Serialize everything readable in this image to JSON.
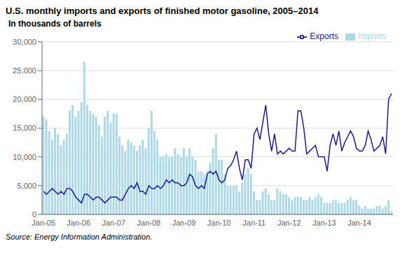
{
  "chart_data": {
    "type": "bar",
    "title": "U.S. monthly imports and exports of finished motor gasoline, 2005–2014",
    "ylabel": "In thousands of barrels",
    "annotations": [
      "Source: Energy Information Administration."
    ],
    "categories": [
      "Jan-05",
      null,
      null,
      null,
      null,
      null,
      null,
      null,
      null,
      null,
      null,
      null,
      "Jan-06",
      null,
      null,
      null,
      null,
      null,
      null,
      null,
      null,
      null,
      null,
      null,
      "Jan-07",
      null,
      null,
      null,
      null,
      null,
      null,
      null,
      null,
      null,
      null,
      null,
      "Jan-08",
      null,
      null,
      null,
      null,
      null,
      null,
      null,
      null,
      null,
      null,
      null,
      "Jan-09",
      null,
      null,
      null,
      null,
      null,
      null,
      null,
      null,
      null,
      null,
      null,
      "Jan-10",
      null,
      null,
      null,
      null,
      null,
      null,
      null,
      null,
      null,
      null,
      null,
      "Jan-11",
      null,
      null,
      null,
      null,
      null,
      null,
      null,
      null,
      null,
      null,
      null,
      "Jan-12",
      null,
      null,
      null,
      null,
      null,
      null,
      null,
      null,
      null,
      null,
      null,
      "Jan-13",
      null,
      null,
      null,
      null,
      null,
      null,
      null,
      null,
      null,
      null,
      null,
      "Jan-14",
      null,
      null,
      null,
      null,
      null,
      null,
      null,
      null,
      null,
      null,
      null
    ],
    "series": [
      {
        "name": "Imports",
        "type": "bar",
        "color": "#add8e6",
        "values": [
          17000,
          16500,
          14500,
          13000,
          15000,
          14000,
          12000,
          13000,
          14000,
          18000,
          19000,
          17000,
          18000,
          19500,
          26500,
          19000,
          18000,
          17500,
          17000,
          15500,
          13500,
          17000,
          18000,
          16000,
          17500,
          17500,
          13500,
          12000,
          11000,
          13000,
          12500,
          12000,
          11000,
          12000,
          13000,
          11500,
          15000,
          18000,
          14500,
          13000,
          10000,
          10000,
          10500,
          10000,
          10000,
          11500,
          10500,
          10000,
          11500,
          10000,
          11500,
          10000,
          9500,
          7500,
          7500,
          7000,
          7500,
          9000,
          11500,
          14000,
          9500,
          9500,
          7000,
          5000,
          5000,
          5000,
          5000,
          4000,
          5500,
          7000,
          8000,
          7000,
          4000,
          2500,
          2500,
          4000,
          4500,
          3500,
          2500,
          2500,
          4500,
          4000,
          3500,
          3500,
          3000,
          2500,
          3000,
          3000,
          3000,
          2500,
          2500,
          3000,
          2500,
          3000,
          3500,
          3000,
          2000,
          2000,
          2000,
          2500,
          2500,
          2000,
          2000,
          2000,
          2500,
          3000,
          2500,
          2500,
          1500,
          1000,
          1500,
          1000,
          1000,
          1000,
          1500,
          1500,
          1000,
          1500,
          2500,
          500
        ]
      },
      {
        "name": "Exports",
        "type": "line",
        "color": "#1a1a8c",
        "values": [
          4000,
          3500,
          4000,
          4500,
          4000,
          3500,
          4000,
          3500,
          4500,
          4500,
          4000,
          3000,
          2500,
          2000,
          3500,
          3500,
          3000,
          2500,
          3000,
          3000,
          2500,
          2000,
          2500,
          3000,
          3000,
          3000,
          2500,
          2500,
          3500,
          4500,
          5000,
          4500,
          5500,
          4000,
          4000,
          3500,
          5000,
          4500,
          4500,
          5000,
          4500,
          5000,
          6000,
          5500,
          6000,
          5500,
          5500,
          5000,
          5000,
          5500,
          7000,
          6500,
          5000,
          4500,
          5000,
          4500,
          7000,
          7500,
          7000,
          7500,
          6000,
          5500,
          6000,
          8000,
          8500,
          9500,
          11000,
          8000,
          6000,
          9500,
          9500,
          8000,
          14000,
          15000,
          13000,
          16000,
          19000,
          14000,
          11000,
          14000,
          10500,
          11000,
          10500,
          11000,
          11500,
          11000,
          11000,
          18000,
          18000,
          15000,
          10500,
          11000,
          11500,
          12000,
          10000,
          10000,
          10000,
          7500,
          12000,
          14000,
          12000,
          14500,
          11000,
          12500,
          13500,
          14500,
          13500,
          11500,
          11000,
          11000,
          12000,
          14500,
          13000,
          11000,
          11500,
          12000,
          13500,
          10500,
          20000,
          21000
        ]
      }
    ],
    "ylim": [
      0,
      30000
    ],
    "yticks": [
      0,
      {
        "value": 5000,
        "label": "5,000"
      },
      {
        "value": 10000,
        "label": "10,000"
      },
      {
        "value": 15000,
        "label": "15,000"
      },
      {
        "value": 20000,
        "label": "20,000"
      },
      {
        "value": 25000,
        "label": "25,000"
      },
      {
        "value": 30000,
        "label": "30,000"
      }
    ],
    "grid": true,
    "legend": "upper right"
  }
}
